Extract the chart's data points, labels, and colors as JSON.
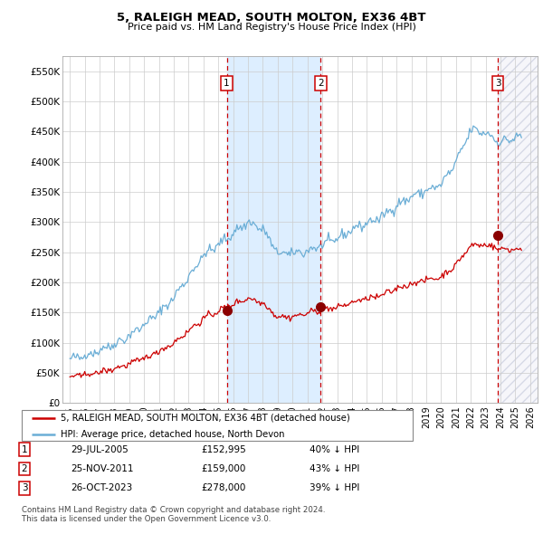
{
  "title": "5, RALEIGH MEAD, SOUTH MOLTON, EX36 4BT",
  "subtitle": "Price paid vs. HM Land Registry's House Price Index (HPI)",
  "legend_line1": "5, RALEIGH MEAD, SOUTH MOLTON, EX36 4BT (detached house)",
  "legend_line2": "HPI: Average price, detached house, North Devon",
  "footer1": "Contains HM Land Registry data © Crown copyright and database right 2024.",
  "footer2": "This data is licensed under the Open Government Licence v3.0.",
  "transactions": [
    {
      "num": 1,
      "date": "29-JUL-2005",
      "price": "152,995",
      "price_val": 152995,
      "pct": "40%",
      "x_year": 2005.57
    },
    {
      "num": 2,
      "date": "25-NOV-2011",
      "price": "159,000",
      "price_val": 159000,
      "pct": "43%",
      "x_year": 2011.9
    },
    {
      "num": 3,
      "date": "26-OCT-2023",
      "price": "278,000",
      "price_val": 278000,
      "pct": "39%",
      "x_year": 2023.82
    }
  ],
  "hpi_color": "#6baed6",
  "property_color": "#cc0000",
  "transaction_marker_color": "#8b0000",
  "dashed_line_color": "#cc0000",
  "shaded_region_color": "#ddeeff",
  "ylim": [
    0,
    575000
  ],
  "xlim_start": 1994.5,
  "xlim_end": 2026.5,
  "yticks": [
    0,
    50000,
    100000,
    150000,
    200000,
    250000,
    300000,
    350000,
    400000,
    450000,
    500000,
    550000
  ],
  "ytick_labels": [
    "£0",
    "£50K",
    "£100K",
    "£150K",
    "£200K",
    "£250K",
    "£300K",
    "£350K",
    "£400K",
    "£450K",
    "£500K",
    "£550K"
  ],
  "xticks": [
    1995,
    1996,
    1997,
    1998,
    1999,
    2000,
    2001,
    2002,
    2003,
    2004,
    2005,
    2006,
    2007,
    2008,
    2009,
    2010,
    2011,
    2012,
    2013,
    2014,
    2015,
    2016,
    2017,
    2018,
    2019,
    2020,
    2021,
    2022,
    2023,
    2024,
    2025,
    2026
  ]
}
